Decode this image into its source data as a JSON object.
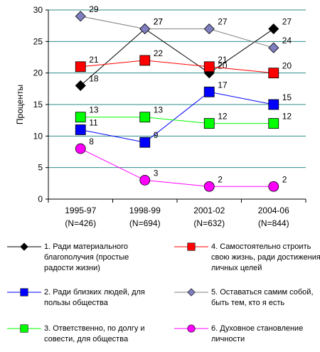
{
  "chart_data": {
    "type": "line",
    "y_label": "Проценты",
    "categories": [
      "1995-97\n(N=426)",
      "1998-99\n(N=694)",
      "2001-02\n(N=632)",
      "2004-06\n(N=844)"
    ],
    "ylim": [
      0,
      30
    ],
    "yticks": [
      0,
      5,
      10,
      15,
      20,
      25,
      30
    ],
    "grid": true,
    "series": [
      {
        "name": "1. Ради  материального благополучия (простые радости жизни)",
        "color": "#000000",
        "marker": "diamond",
        "values": [
          18,
          27,
          20,
          27
        ]
      },
      {
        "name": "2. Ради близких людей, для пользы общества",
        "color": "#0000ff",
        "marker": "square",
        "values": [
          11,
          9,
          17,
          15
        ]
      },
      {
        "name": "3. Ответственно, по долгу и совести, для общества",
        "color": "#00ff00",
        "marker": "square",
        "values": [
          13,
          13,
          12,
          12
        ]
      },
      {
        "name": "4. Самостоятельно строить свою жизнь, ради достижения личных целей",
        "color": "#ff0000",
        "marker": "square",
        "values": [
          21,
          22,
          21,
          20
        ]
      },
      {
        "name": "5. Оставаться самим собой, быть тем, кто я есть",
        "color": "#7f7fbf",
        "marker": "diamond",
        "values": [
          29,
          27,
          27,
          24
        ]
      },
      {
        "name": "6. Духовное становление личности",
        "color": "#ff00ff",
        "marker": "circle",
        "values": [
          8,
          3,
          2,
          2
        ]
      }
    ]
  }
}
